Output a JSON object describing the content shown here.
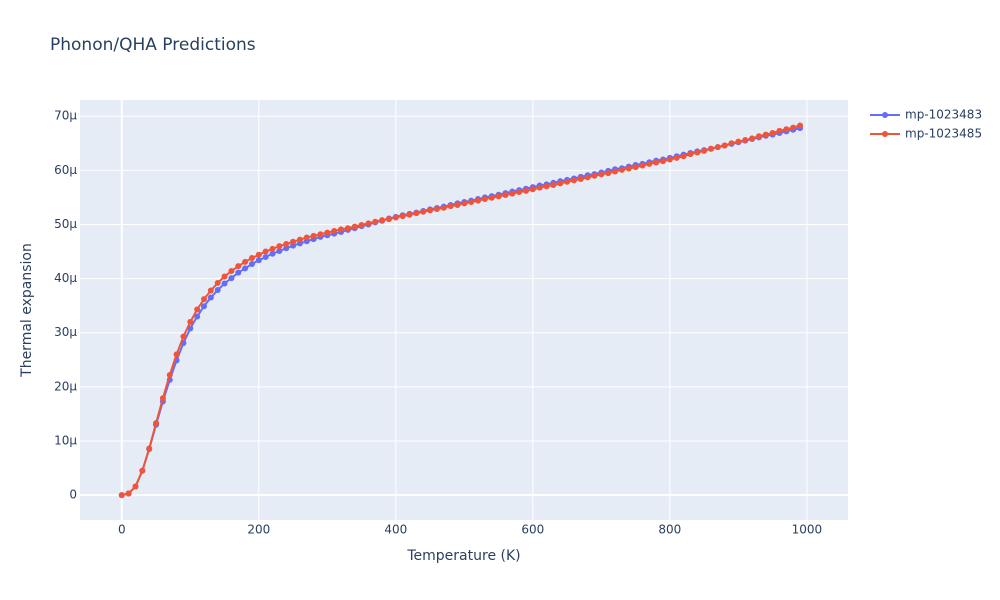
{
  "chart_data": {
    "type": "line",
    "title": "Phonon/QHA Predictions",
    "x_label": "Temperature (K)",
    "y_label": "Thermal expansion",
    "x": [
      0,
      10,
      20,
      30,
      40,
      50,
      60,
      70,
      80,
      90,
      100,
      110,
      120,
      130,
      140,
      150,
      160,
      170,
      180,
      190,
      200,
      210,
      220,
      230,
      240,
      250,
      260,
      270,
      280,
      290,
      300,
      310,
      320,
      330,
      340,
      350,
      360,
      370,
      380,
      390,
      400,
      410,
      420,
      430,
      440,
      450,
      460,
      470,
      480,
      490,
      500,
      510,
      520,
      530,
      540,
      550,
      560,
      570,
      580,
      590,
      600,
      610,
      620,
      630,
      640,
      650,
      660,
      670,
      680,
      690,
      700,
      710,
      720,
      730,
      740,
      750,
      760,
      770,
      780,
      790,
      800,
      810,
      820,
      830,
      840,
      850,
      860,
      870,
      880,
      890,
      900,
      910,
      920,
      930,
      940,
      950,
      960,
      970,
      980,
      990
    ],
    "series": [
      {
        "name": "mp-1023483",
        "color": "#636efa",
        "values": [
          0,
          3e-07,
          1.6e-06,
          4.5e-06,
          8.5e-06,
          1.3e-05,
          1.73e-05,
          2.13e-05,
          2.49e-05,
          2.81e-05,
          3.08e-05,
          3.3e-05,
          3.49e-05,
          3.65e-05,
          3.79e-05,
          3.91e-05,
          4.01e-05,
          4.11e-05,
          4.19e-05,
          4.27e-05,
          4.34e-05,
          4.4e-05,
          4.46e-05,
          4.51e-05,
          4.56e-05,
          4.61e-05,
          4.65e-05,
          4.69e-05,
          4.73e-05,
          4.77e-05,
          4.8e-05,
          4.83e-05,
          4.86e-05,
          4.9e-05,
          4.93e-05,
          4.97e-05,
          5e-05,
          5.04e-05,
          5.07e-05,
          5.11e-05,
          5.14e-05,
          5.17e-05,
          5.195e-05,
          5.22e-05,
          5.25e-05,
          5.28e-05,
          5.305e-05,
          5.33e-05,
          5.36e-05,
          5.39e-05,
          5.415e-05,
          5.44e-05,
          5.47e-05,
          5.5e-05,
          5.525e-05,
          5.55e-05,
          5.58e-05,
          5.61e-05,
          5.635e-05,
          5.66e-05,
          5.69e-05,
          5.72e-05,
          5.74e-05,
          5.77e-05,
          5.8e-05,
          5.825e-05,
          5.85e-05,
          5.88e-05,
          5.91e-05,
          5.93e-05,
          5.96e-05,
          5.99e-05,
          6.02e-05,
          6.04e-05,
          6.07e-05,
          6.1e-05,
          6.12e-05,
          6.15e-05,
          6.18e-05,
          6.2e-05,
          6.23e-05,
          6.26e-05,
          6.29e-05,
          6.32e-05,
          6.35e-05,
          6.375e-05,
          6.4e-05,
          6.43e-05,
          6.46e-05,
          6.49e-05,
          6.52e-05,
          6.55e-05,
          6.58e-05,
          6.61e-05,
          6.64e-05,
          6.66e-05,
          6.69e-05,
          6.72e-05,
          6.75e-05,
          6.78e-05
        ]
      },
      {
        "name": "mp-1023485",
        "color": "#ef553b",
        "values": [
          0,
          3e-07,
          1.6e-06,
          4.5e-06,
          8.6e-06,
          1.33e-05,
          1.79e-05,
          2.22e-05,
          2.6e-05,
          2.93e-05,
          3.2e-05,
          3.43e-05,
          3.62e-05,
          3.78e-05,
          3.92e-05,
          4.04e-05,
          4.14e-05,
          4.23e-05,
          4.31e-05,
          4.38e-05,
          4.44e-05,
          4.5e-05,
          4.55e-05,
          4.6e-05,
          4.64e-05,
          4.68e-05,
          4.72e-05,
          4.76e-05,
          4.79e-05,
          4.82e-05,
          4.85e-05,
          4.88e-05,
          4.91e-05,
          4.93e-05,
          4.96e-05,
          4.99e-05,
          5.02e-05,
          5.05e-05,
          5.08e-05,
          5.1e-05,
          5.13e-05,
          5.155e-05,
          5.18e-05,
          5.21e-05,
          5.235e-05,
          5.26e-05,
          5.285e-05,
          5.31e-05,
          5.34e-05,
          5.36e-05,
          5.39e-05,
          5.415e-05,
          5.44e-05,
          5.47e-05,
          5.495e-05,
          5.52e-05,
          5.545e-05,
          5.57e-05,
          5.6e-05,
          5.62e-05,
          5.65e-05,
          5.68e-05,
          5.705e-05,
          5.73e-05,
          5.76e-05,
          5.79e-05,
          5.815e-05,
          5.84e-05,
          5.87e-05,
          5.9e-05,
          5.925e-05,
          5.95e-05,
          5.98e-05,
          6.01e-05,
          6.035e-05,
          6.06e-05,
          6.09e-05,
          6.12e-05,
          6.145e-05,
          6.17e-05,
          6.2e-05,
          6.23e-05,
          6.26e-05,
          6.3e-05,
          6.33e-05,
          6.36e-05,
          6.4e-05,
          6.43e-05,
          6.46e-05,
          6.5e-05,
          6.53e-05,
          6.56e-05,
          6.59e-05,
          6.63e-05,
          6.66e-05,
          6.69e-05,
          6.73e-05,
          6.76e-05,
          6.79e-05,
          6.83e-05
        ]
      }
    ],
    "xlim": [
      -61,
      1060
    ],
    "xticks": [
      0,
      200,
      400,
      600,
      800,
      1000
    ],
    "ylim": [
      -4.6e-06,
      7.3e-05
    ],
    "yticks": [
      0,
      {
        "value": 1e-05,
        "label": "10µ"
      },
      {
        "value": 2e-05,
        "label": "20µ"
      },
      {
        "value": 3e-05,
        "label": "30µ"
      },
      {
        "value": 4e-05,
        "label": "40µ"
      },
      {
        "value": 5e-05,
        "label": "50µ"
      },
      {
        "value": 6e-05,
        "label": "60µ"
      },
      {
        "value": 7e-05,
        "label": "70µ"
      }
    ],
    "grid": true,
    "legend": "right"
  }
}
